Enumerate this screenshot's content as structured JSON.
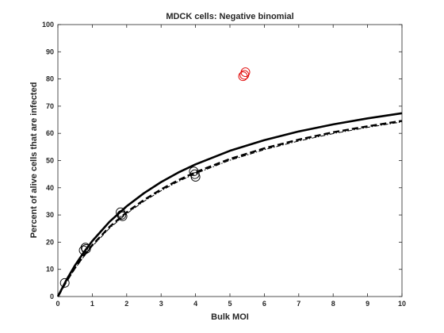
{
  "chart_data": {
    "type": "scatter",
    "title": "MDCK cells: Negative binomial",
    "xlabel": "Bulk MOI",
    "ylabel": "Percent of alive cells that are infected",
    "xlim": [
      0,
      10
    ],
    "ylim": [
      0,
      100
    ],
    "xticks": [
      0,
      1,
      2,
      3,
      4,
      5,
      6,
      7,
      8,
      9,
      10
    ],
    "yticks": [
      0,
      10,
      20,
      30,
      40,
      50,
      60,
      70,
      80,
      90,
      100
    ],
    "grid": false,
    "series": [
      {
        "type": "scatter",
        "marker": "open-circle",
        "color": "#000000",
        "x": [
          0.2,
          0.75,
          0.8,
          0.82,
          1.82,
          1.85,
          1.88,
          3.95,
          3.98,
          4.0
        ],
        "y": [
          5,
          17,
          18,
          17.5,
          31,
          30,
          29.5,
          46,
          45,
          44
        ]
      },
      {
        "type": "scatter",
        "marker": "open-circle",
        "color": "#e00000",
        "x": [
          5.38,
          5.42,
          5.45
        ],
        "y": [
          81,
          81.5,
          82.5
        ]
      },
      {
        "type": "line",
        "style": "solid",
        "color": "#000000",
        "x": [
          0,
          0.25,
          0.5,
          0.75,
          1,
          1.5,
          2,
          2.5,
          3,
          3.5,
          4,
          5,
          6,
          7,
          8,
          9,
          10
        ],
        "y": [
          0,
          6.1,
          11.5,
          16.2,
          20.4,
          27.5,
          33.2,
          38.0,
          42.1,
          45.6,
          48.6,
          53.6,
          57.5,
          60.7,
          63.3,
          65.5,
          67.4
        ]
      },
      {
        "type": "line",
        "style": "dashed",
        "color": "#000000",
        "x": [
          0,
          0.25,
          0.5,
          0.75,
          1,
          1.5,
          2,
          2.5,
          3,
          3.5,
          4,
          5,
          6,
          7,
          8,
          9,
          10
        ],
        "y": [
          0,
          5.6,
          10.6,
          15.0,
          18.9,
          25.6,
          31.0,
          35.5,
          39.4,
          42.8,
          45.7,
          50.6,
          54.5,
          57.7,
          60.4,
          62.6,
          64.6
        ]
      },
      {
        "type": "line",
        "style": "dash-dot",
        "color": "#000000",
        "x": [
          0,
          0.25,
          0.5,
          0.75,
          1,
          1.5,
          2,
          2.5,
          3,
          3.5,
          4,
          5,
          6,
          7,
          8,
          9,
          10
        ],
        "y": [
          0,
          5.4,
          10.3,
          14.6,
          18.5,
          25.1,
          30.5,
          35.0,
          38.9,
          42.3,
          45.2,
          50.1,
          54.0,
          57.2,
          59.9,
          62.2,
          64.2
        ]
      }
    ]
  }
}
